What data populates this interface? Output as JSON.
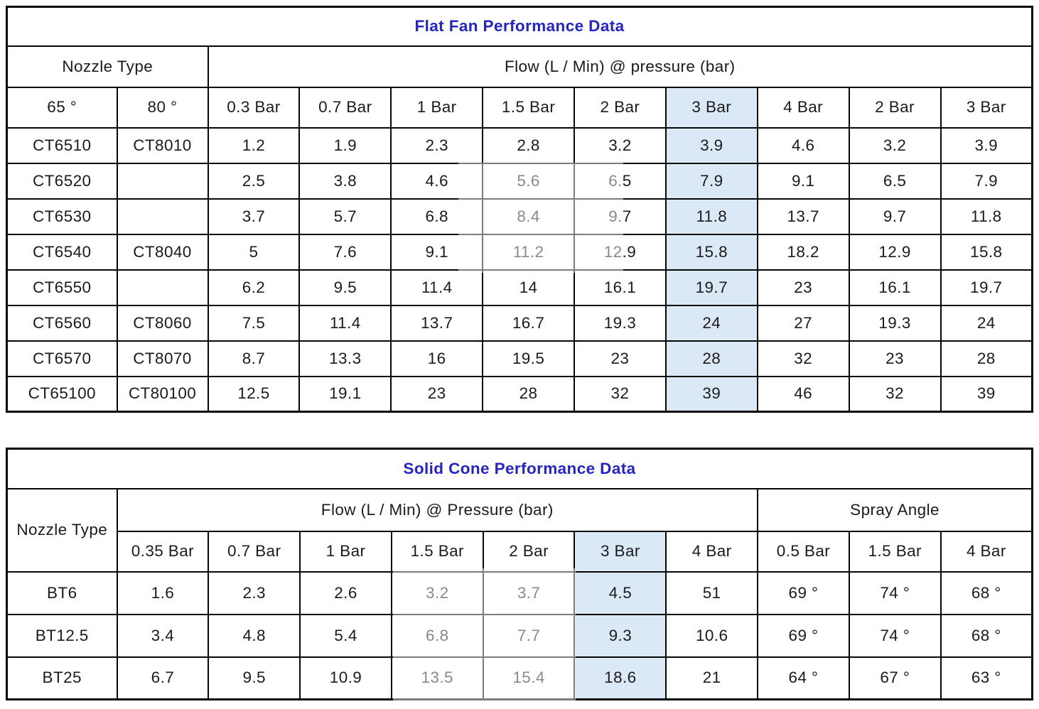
{
  "colors": {
    "title_blue": "#2424cb",
    "highlight_blue": "#dbe9f6",
    "border_black": "#070707"
  },
  "flat_fan": {
    "title": "Flat Fan Performance Data",
    "nozzle_type_label": "Nozzle Type",
    "flow_label": "Flow (L / Min) @ pressure (bar)",
    "angle_headers": [
      "65 °",
      "80 °"
    ],
    "pressure_headers": [
      "0.3 Bar",
      "0.7 Bar",
      "1 Bar",
      "1.5 Bar",
      "2 Bar",
      "3 Bar",
      "4 Bar",
      "2 Bar",
      "3 Bar"
    ],
    "highlight_index": 5,
    "rows": [
      {
        "nozzle_65": "CT6510",
        "nozzle_80": "CT8010",
        "flows": [
          "1.2",
          "1.9",
          "2.3",
          "2.8",
          "3.2",
          "3.9",
          "4.6",
          "3.2",
          "3.9"
        ]
      },
      {
        "nozzle_65": "CT6520",
        "nozzle_80": "",
        "flows": [
          "2.5",
          "3.8",
          "4.6",
          "5.6",
          "6.5",
          "7.9",
          "9.1",
          "6.5",
          "7.9"
        ]
      },
      {
        "nozzle_65": "CT6530",
        "nozzle_80": "",
        "flows": [
          "3.7",
          "5.7",
          "6.8",
          "8.4",
          "9.7",
          "11.8",
          "13.7",
          "9.7",
          "11.8"
        ]
      },
      {
        "nozzle_65": "CT6540",
        "nozzle_80": "CT8040",
        "flows": [
          "5",
          "7.6",
          "9.1",
          "11.2",
          "12.9",
          "15.8",
          "18.2",
          "12.9",
          "15.8"
        ]
      },
      {
        "nozzle_65": "CT6550",
        "nozzle_80": "",
        "flows": [
          "6.2",
          "9.5",
          "11.4",
          "14",
          "16.1",
          "19.7",
          "23",
          "16.1",
          "19.7"
        ]
      },
      {
        "nozzle_65": "CT6560",
        "nozzle_80": "CT8060",
        "flows": [
          "7.5",
          "11.4",
          "13.7",
          "16.7",
          "19.3",
          "24",
          "27",
          "19.3",
          "24"
        ]
      },
      {
        "nozzle_65": "CT6570",
        "nozzle_80": "CT8070",
        "flows": [
          "8.7",
          "13.3",
          "16",
          "19.5",
          "23",
          "28",
          "32",
          "23",
          "28"
        ]
      },
      {
        "nozzle_65": "CT65100",
        "nozzle_80": "CT80100",
        "flows": [
          "12.5",
          "19.1",
          "23",
          "28",
          "32",
          "39",
          "46",
          "32",
          "39"
        ]
      }
    ]
  },
  "solid_cone": {
    "title": "Solid Cone Performance Data",
    "nozzle_type_label": "Nozzle Type",
    "flow_label": "Flow (L / Min) @ Pressure (bar)",
    "spray_angle_label": "Spray Angle",
    "flow_pressure_headers": [
      "0.35 Bar",
      "0.7 Bar",
      "1 Bar",
      "1.5 Bar",
      "2 Bar",
      "3 Bar",
      "4 Bar"
    ],
    "spray_pressure_headers": [
      "0.5 Bar",
      "1.5 Bar",
      "4 Bar"
    ],
    "highlight_index": 5,
    "rows": [
      {
        "nozzle": "BT6",
        "flows": [
          "1.6",
          "2.3",
          "2.6",
          "3.2",
          "3.7",
          "4.5",
          "51"
        ],
        "spray_angles": [
          "69 °",
          "74 °",
          "68 °"
        ]
      },
      {
        "nozzle": "BT12.5",
        "flows": [
          "3.4",
          "4.8",
          "5.4",
          "6.8",
          "7.7",
          "9.3",
          "10.6"
        ],
        "spray_angles": [
          "69 °",
          "74 °",
          "68 °"
        ]
      },
      {
        "nozzle": "BT25",
        "flows": [
          "6.7",
          "9.5",
          "10.9",
          "13.5",
          "15.4",
          "18.6",
          "21"
        ],
        "spray_angles": [
          "64 °",
          "67 °",
          "63 °"
        ]
      }
    ]
  }
}
